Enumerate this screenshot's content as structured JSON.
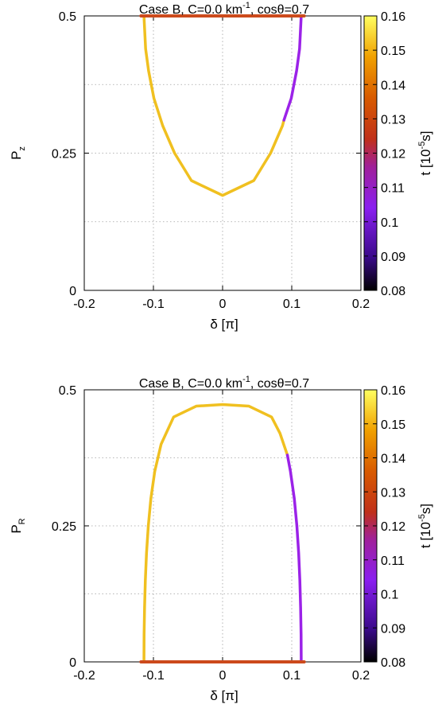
{
  "chart_data": [
    {
      "type": "line",
      "title_parts": [
        "Case B, C=0.0 km",
        "-1",
        ", cosθ=0.7"
      ],
      "xlabel": "δ [π]",
      "ylabel_main": "P",
      "ylabel_sub": "z",
      "xlim": [
        -0.2,
        0.2
      ],
      "ylim": [
        0,
        0.5
      ],
      "xticks": [
        "-0.2",
        "-0.1",
        "0",
        "0.1",
        "0.2"
      ],
      "yticks": [
        "0",
        "0.25",
        "0.5"
      ],
      "grid": true,
      "colorbar": {
        "label_parts": [
          "t [10",
          "-5",
          "s]"
        ],
        "range": [
          0.08,
          0.16
        ],
        "ticks": [
          "0.08",
          "0.09",
          "0.1",
          "0.11",
          "0.12",
          "0.13",
          "0.14",
          "0.15",
          "0.16"
        ]
      },
      "series": [
        {
          "color": "#f0c020",
          "points": [
            [
              -0.1137,
              0.5
            ],
            [
              -0.1113,
              0.44
            ],
            [
              -0.107,
              0.4
            ],
            [
              -0.0993,
              0.35
            ],
            [
              -0.0866,
              0.3
            ],
            [
              -0.0694,
              0.25
            ],
            [
              -0.0451,
              0.2
            ],
            [
              0,
              0.173
            ],
            [
              0.0451,
              0.2
            ],
            [
              0.0694,
              0.25
            ],
            [
              0.0866,
              0.3
            ],
            [
              0.0887,
              0.31
            ]
          ]
        },
        {
          "color": "#9b22e8",
          "points": [
            [
              0.0887,
              0.31
            ],
            [
              0.0993,
              0.35
            ],
            [
              0.107,
              0.4
            ],
            [
              0.1113,
              0.44
            ],
            [
              0.1137,
              0.5
            ]
          ]
        },
        {
          "color": "#cc4a1c",
          "points": [
            [
              -0.118,
              0.5
            ],
            [
              0.118,
              0.5
            ]
          ]
        }
      ]
    },
    {
      "type": "line",
      "title_parts": [
        "Case B, C=0.0 km",
        "-1",
        ", cosθ=0.7"
      ],
      "xlabel": "δ [π]",
      "ylabel_main": "P",
      "ylabel_sub": "R",
      "xlim": [
        -0.2,
        0.2
      ],
      "ylim": [
        0,
        0.5
      ],
      "xticks": [
        "-0.2",
        "-0.1",
        "0",
        "0.1",
        "0.2"
      ],
      "yticks": [
        "0",
        "0.25",
        "0.5"
      ],
      "grid": true,
      "colorbar": {
        "label_parts": [
          "t [10",
          "-5",
          "s]"
        ],
        "range": [
          0.08,
          0.16
        ],
        "ticks": [
          "0.08",
          "0.09",
          "0.1",
          "0.11",
          "0.12",
          "0.13",
          "0.14",
          "0.15",
          "0.16"
        ]
      },
      "series": [
        {
          "color": "#f0c020",
          "points": [
            [
              -0.1137,
              0
            ],
            [
              -0.1135,
              0.05
            ],
            [
              -0.1128,
              0.1
            ],
            [
              -0.1117,
              0.15
            ],
            [
              -0.11,
              0.2
            ],
            [
              -0.1074,
              0.25
            ],
            [
              -0.1037,
              0.3
            ],
            [
              -0.0981,
              0.35
            ],
            [
              -0.0889,
              0.4
            ],
            [
              -0.0708,
              0.45
            ],
            [
              -0.0381,
              0.47
            ],
            [
              0,
              0.473
            ],
            [
              0.0381,
              0.47
            ],
            [
              0.0708,
              0.45
            ],
            [
              0.083,
              0.42
            ],
            [
              0.0937,
              0.38
            ]
          ]
        },
        {
          "color": "#9b22e8",
          "points": [
            [
              0.0937,
              0.38
            ],
            [
              0.0981,
              0.35
            ],
            [
              0.1037,
              0.3
            ],
            [
              0.1074,
              0.25
            ],
            [
              0.11,
              0.2
            ],
            [
              0.1117,
              0.15
            ],
            [
              0.1128,
              0.1
            ],
            [
              0.1135,
              0.05
            ],
            [
              0.1137,
              0
            ]
          ]
        },
        {
          "color": "#cc4a1c",
          "points": [
            [
              -0.118,
              0
            ],
            [
              0.118,
              0
            ]
          ]
        }
      ]
    }
  ]
}
